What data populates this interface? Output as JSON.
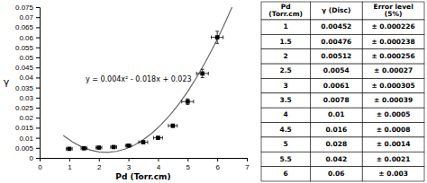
{
  "chart_data": {
    "type": "scatter",
    "xlabel": "Pd (Torr.cm)",
    "ylabel": "γ",
    "xlim": [
      0,
      7
    ],
    "ylim": [
      0,
      0.075
    ],
    "xticks": [
      0,
      1,
      2,
      3,
      4,
      5,
      6,
      7
    ],
    "yticks": [
      0,
      0.005,
      0.01,
      0.015,
      0.02,
      0.025,
      0.03,
      0.035,
      0.04,
      0.045,
      0.05,
      0.055,
      0.06,
      0.065,
      0.07,
      0.075
    ],
    "grid": false,
    "annotations": [
      {
        "text": "y = 0.004x² - 0.018x + 0.023",
        "x": 1.55,
        "y": 0.038
      }
    ],
    "series": [
      {
        "type": "line",
        "color": "#666666",
        "line_style": "solid",
        "x": [
          0.8,
          1.1,
          1.4,
          1.7,
          2.0,
          2.3,
          2.6,
          2.9,
          3.2,
          3.5,
          3.8,
          4.1,
          4.4,
          4.7,
          5.0,
          5.3,
          5.6,
          5.9,
          6.2,
          6.5
        ],
        "values": [
          0.01116,
          0.00804,
          0.00564,
          0.00396,
          0.003,
          0.00276,
          0.00324,
          0.00444,
          0.00636,
          0.009,
          0.01236,
          0.01644,
          0.02124,
          0.02676,
          0.033,
          0.03996,
          0.04764,
          0.05604,
          0.06516,
          0.075
        ]
      },
      {
        "type": "scatter",
        "color": "black",
        "marker": "square",
        "x": [
          1,
          1.5,
          2,
          2.5,
          3,
          3.5,
          4,
          4.5,
          5,
          5.5,
          6
        ],
        "values": [
          0.00452,
          0.00476,
          0.00512,
          0.0054,
          0.0061,
          0.0078,
          0.01,
          0.016,
          0.028,
          0.042,
          0.06
        ],
        "error": [
          0.000226,
          0.000238,
          0.000256,
          0.00027,
          0.000305,
          0.00039,
          0.0005,
          0.0008,
          0.0014,
          0.0021,
          0.003
        ],
        "xerr": [
          0.1,
          0.1,
          0.1,
          0.1,
          0.1,
          0.15,
          0.15,
          0.15,
          0.2,
          0.2,
          0.2
        ]
      }
    ],
    "table": {
      "headers": [
        "Pd\n(Torr.cm)",
        "γ (Disc)",
        "Error level\n(5%)"
      ],
      "columns": [
        [
          "1",
          "1.5",
          "2",
          "2.5",
          "3",
          "3.5",
          "4",
          "4.5",
          "5",
          "5.5",
          "6"
        ],
        [
          "0.00452",
          "0.00476",
          "0.00512",
          "0.0054",
          "0.0061",
          "0.0078",
          "0.01",
          "0.016",
          "0.028",
          "0.042",
          "0.06"
        ],
        [
          "± 0.000226",
          "± 0.000238",
          "± 0.000256",
          "± 0.00027",
          "± 0.000305",
          "± 0.00039",
          "± 0.0005",
          "± 0.0008",
          "± 0.0014",
          "± 0.0021",
          "± 0.003"
        ]
      ]
    }
  }
}
